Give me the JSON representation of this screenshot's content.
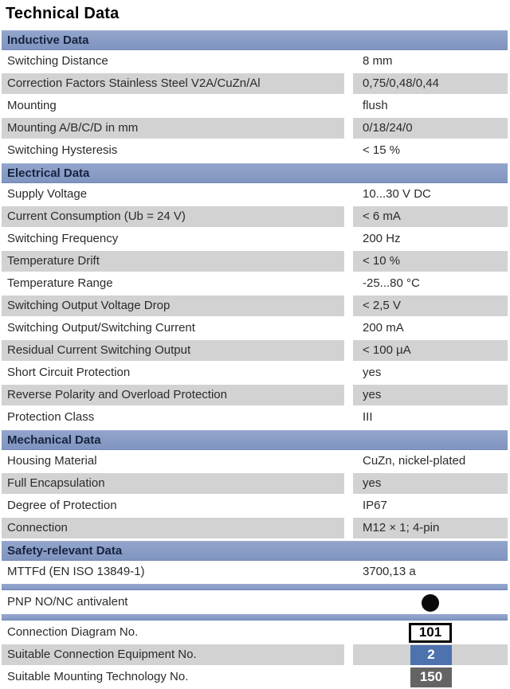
{
  "title": "Technical Data",
  "colors": {
    "section_header_bg": "#8598c4",
    "section_header_text": "#17233f",
    "divider_bar": "#8ca2cc",
    "row_shaded_bg": "#d2d2d2",
    "pnp_indicator": "#0a0a0a",
    "box_outlined_border": "#000000",
    "box_blue_bg": "#4d72ae",
    "box_dark_bg": "#646464",
    "box_number_text_light": "#ffffff"
  },
  "sections": [
    {
      "header": "Inductive Data",
      "rows": [
        {
          "label": "Switching Distance",
          "value": "8 mm",
          "shaded": false
        },
        {
          "label": "Correction Factors Stainless Steel V2A/CuZn/Al",
          "value": "0,75/0,48/0,44",
          "shaded": true
        },
        {
          "label": "Mounting",
          "value": "flush",
          "shaded": false
        },
        {
          "label": "Mounting A/B/C/D in mm",
          "value": "0/18/24/0",
          "shaded": true
        },
        {
          "label": "Switching Hysteresis",
          "value": "< 15 %",
          "shaded": false
        }
      ]
    },
    {
      "header": "Electrical Data",
      "rows": [
        {
          "label": "Supply Voltage",
          "value": "10...30 V DC",
          "shaded": false
        },
        {
          "label": "Current Consumption (Ub = 24 V)",
          "value": "< 6 mA",
          "shaded": true
        },
        {
          "label": "Switching Frequency",
          "value": "200 Hz",
          "shaded": false
        },
        {
          "label": "Temperature Drift",
          "value": "< 10 %",
          "shaded": true
        },
        {
          "label": "Temperature Range",
          "value": "-25...80 °C",
          "shaded": false
        },
        {
          "label": "Switching Output Voltage Drop",
          "value": "< 2,5 V",
          "shaded": true
        },
        {
          "label": "Switching Output/Switching Current",
          "value": "200 mA",
          "shaded": false
        },
        {
          "label": "Residual Current Switching Output",
          "value": "< 100 µA",
          "shaded": true
        },
        {
          "label": "Short Circuit Protection",
          "value": "yes",
          "shaded": false
        },
        {
          "label": "Reverse Polarity and Overload Protection",
          "value": "yes",
          "shaded": true
        },
        {
          "label": "Protection Class",
          "value": "III",
          "shaded": false
        }
      ]
    },
    {
      "header": "Mechanical Data",
      "rows": [
        {
          "label": "Housing Material",
          "value": "CuZn, nickel-plated",
          "shaded": false
        },
        {
          "label": "Full Encapsulation",
          "value": "yes",
          "shaded": true
        },
        {
          "label": "Degree of Protection",
          "value": "IP67",
          "shaded": false
        },
        {
          "label": "Connection",
          "value": "M12 × 1; 4-pin",
          "shaded": true
        }
      ]
    },
    {
      "header": "Safety-relevant Data",
      "rows": [
        {
          "label": "MTTFd (EN ISO 13849-1)",
          "value": "3700,13 a",
          "shaded": false
        }
      ]
    }
  ],
  "footer": {
    "pnp_row": {
      "label": "PNP NO/NC antivalent",
      "indicator": "filled-circle-icon"
    },
    "numbered_rows": [
      {
        "label": "Connection Diagram No.",
        "value": "101",
        "box_style": "outlined",
        "shaded": false
      },
      {
        "label": "Suitable Connection Equipment No.",
        "value": "2",
        "box_style": "blue",
        "shaded": true
      },
      {
        "label": "Suitable Mounting Technology No.",
        "value": "150",
        "box_style": "dark",
        "shaded": false
      }
    ]
  }
}
